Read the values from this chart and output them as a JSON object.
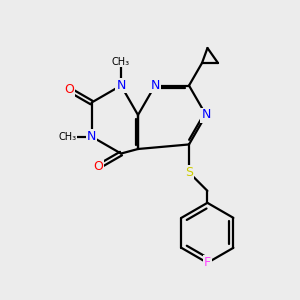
{
  "bg_color": "#ececec",
  "bond_color": "#000000",
  "bond_width": 1.6,
  "atom_colors": {
    "N": "#0000ff",
    "O": "#ff0000",
    "S": "#cccc00",
    "F": "#ff44ff",
    "C": "#000000"
  },
  "font_size_atom": 9,
  "font_size_methyl": 8,
  "s": 36
}
